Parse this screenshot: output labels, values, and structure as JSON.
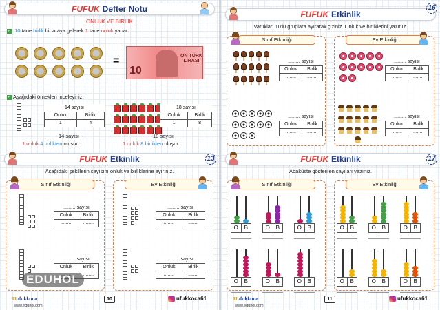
{
  "colors": {
    "accent_red": "#e53935",
    "navy": "#1e3a8a",
    "grid": "#e6edf5",
    "panel_border": "#e07c40"
  },
  "p10": {
    "header_brand": "FUFUK",
    "header_title": "Defter Notu",
    "topic": "ONLUK VE BİRLİK",
    "rule_pre": "10",
    "rule_a": "tane",
    "rule_b": "birlik",
    "rule_c": "bir araya gelerek",
    "rule_d": "1",
    "rule_e": "tane",
    "rule_f": "onluk",
    "rule_g": "yapar.",
    "note_value": "10",
    "note_text": "ON TÜRK LİRASI",
    "examples_text": "Aşağıdaki örnekleri inceleyiniz.",
    "ex1": {
      "title": "14 sayısı",
      "h1": "Onluk",
      "h2": "Birlik",
      "v1": "1",
      "v2": "4",
      "caption_top": "14 sayısı",
      "c1": "1 onluk",
      "c2": "4 birlikten",
      "c3": "oluşur."
    },
    "ex2": {
      "title": "18 sayısı",
      "h1": "Onluk",
      "h2": "Birlik",
      "v1": "1",
      "v2": "8",
      "caption_top": "18 sayısı",
      "c1": "1 onluk",
      "c2": "8 birlikten",
      "c3": "oluşur."
    },
    "page_number": "10"
  },
  "p13": {
    "header_brand": "FUFUK",
    "header_title": "Etkinlik",
    "page_badge": "13",
    "instruction": "Aşağıdaki şekillerin sayısını onluk ve birliklerine ayırınız.",
    "panel_left": "Sınıf Etkinliği",
    "panel_right": "Ev Etkinliği",
    "table_title": "......... sayısı",
    "h1": "Onluk",
    "h2": "Birlik",
    "blank": "........"
  },
  "p16": {
    "header_brand": "FUFUK",
    "header_title": "Etkinlik",
    "page_badge": "16",
    "instruction": "Varlıkları 10'lu gruplara ayırarak çiziniz. Onluk ve birliklerini yazınız.",
    "panel_left": "Sınıf Etkinliği",
    "panel_right": "Ev Etkinliği",
    "table_title": "......... sayısı",
    "h1": "Onluk",
    "h2": "Birlik",
    "blank": "........"
  },
  "p17": {
    "header_brand": "FUFUK",
    "header_title": "Etkinlik",
    "page_badge": "17",
    "instruction": "Abaküste gösterilen sayıları yazınız.",
    "panel_left": "Sınıf Etkinliği",
    "panel_right": "Ev Etkinliği",
    "label_o": "O",
    "label_b": "B",
    "page_number": "11"
  },
  "footer": {
    "logo": "ufukkoca",
    "url": "www.eduhol.com",
    "insta": "ufukkoca61"
  },
  "watermark": "EDUHOL"
}
